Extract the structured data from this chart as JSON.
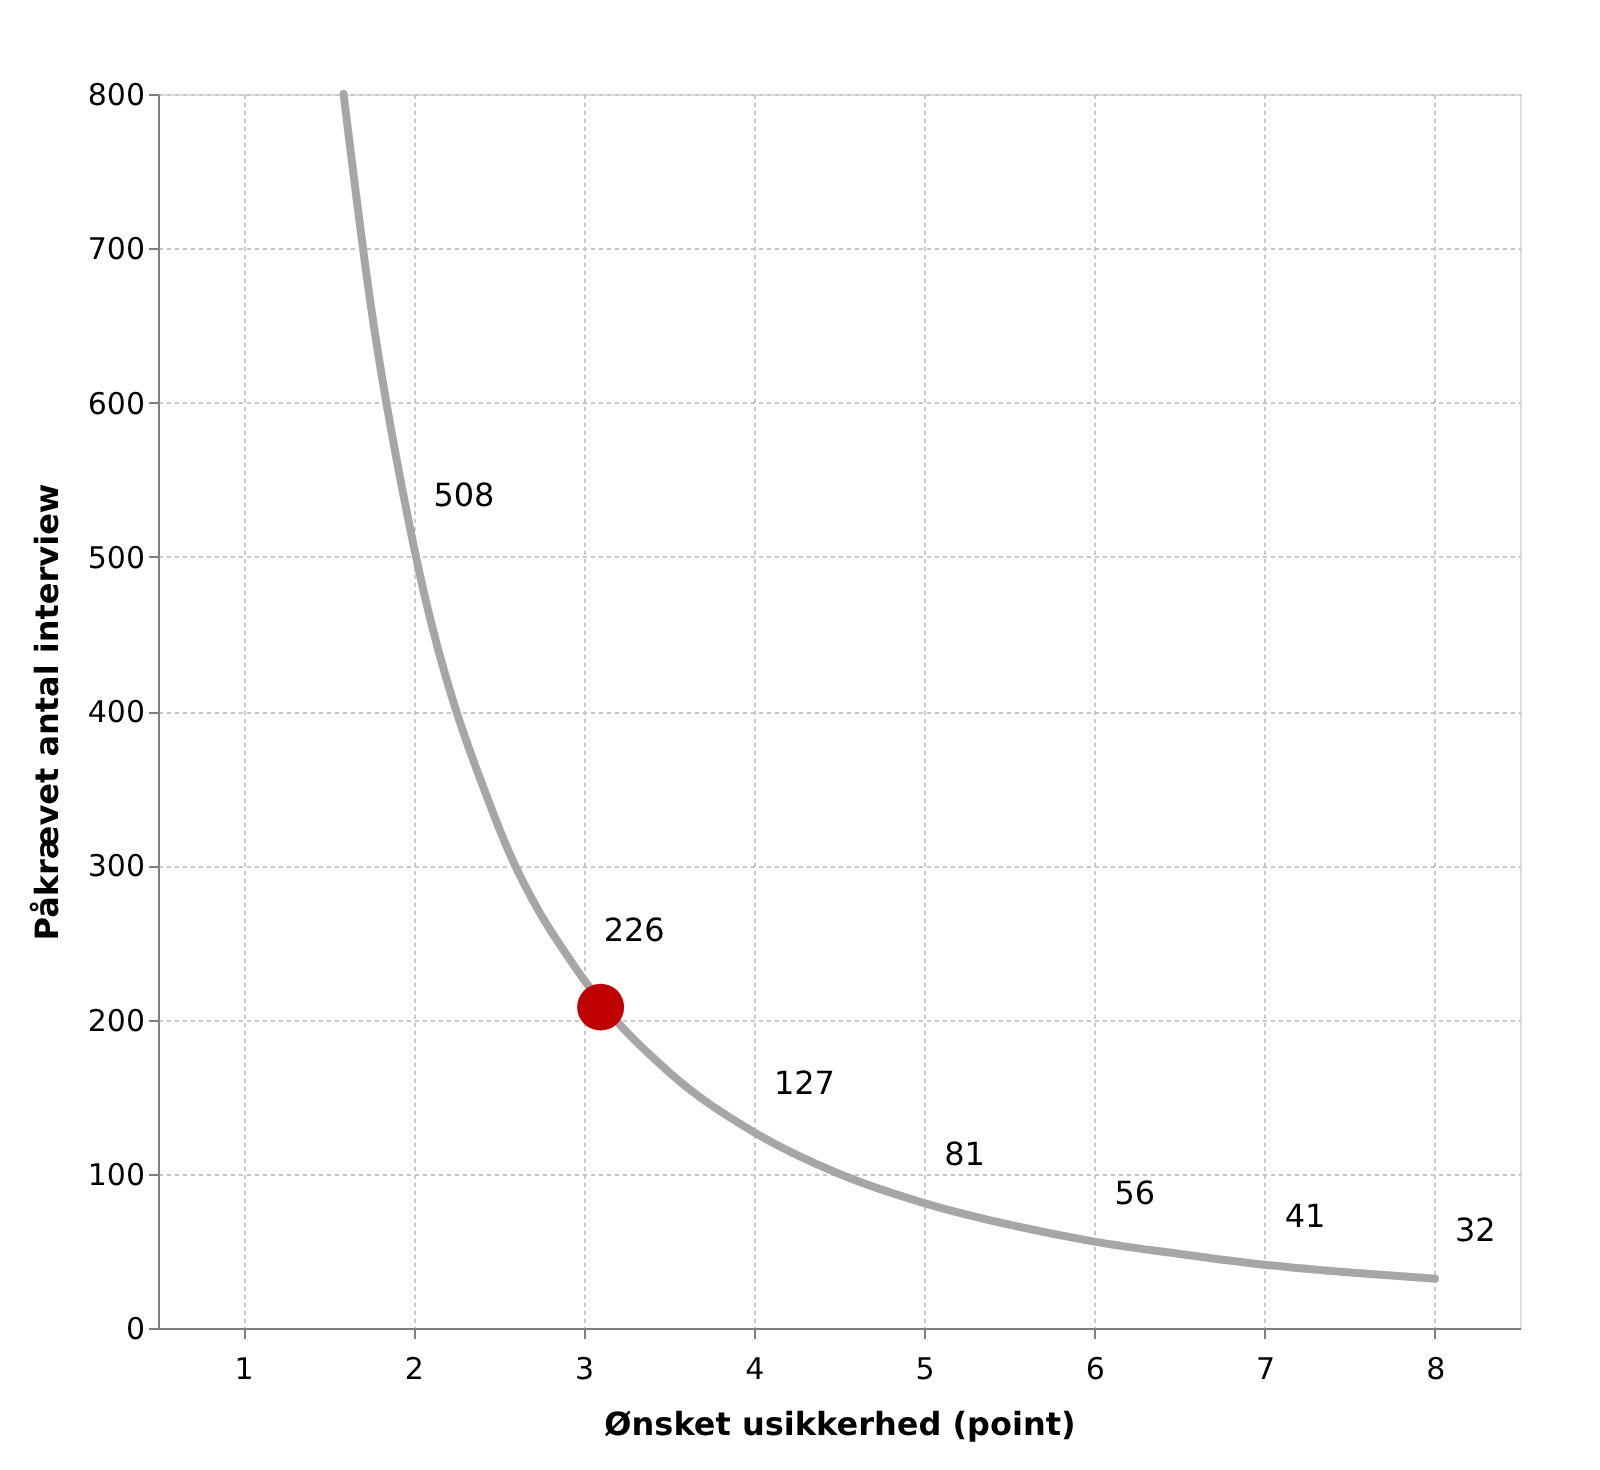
{
  "chart_data": {
    "type": "line",
    "xlabel": "Ønsket usikkerhed (point)",
    "ylabel": "Påkrævet antal interview",
    "xlim": [
      0.5,
      8.5
    ],
    "xticks": [
      1,
      2,
      3,
      4,
      5,
      6,
      7,
      8
    ],
    "ylim": [
      0,
      800
    ],
    "yticks": [
      0,
      100,
      200,
      300,
      400,
      500,
      600,
      700,
      800
    ],
    "grid": true,
    "legend": false,
    "series": [
      {
        "color": "#a6a6a6",
        "line_style": "solid",
        "x": [
          1.59,
          1.75,
          2,
          2.5,
          3,
          3.5,
          4,
          4.5,
          5,
          5.5,
          6,
          6.5,
          7,
          7.5,
          8
        ],
        "values": [
          800,
          663,
          508,
          325,
          226,
          166,
          127,
          100,
          81,
          67,
          56,
          48,
          41,
          36,
          32
        ],
        "value_labels": [
          null,
          null,
          "508",
          null,
          "226",
          null,
          "127",
          null,
          "81",
          null,
          "56",
          null,
          "41",
          null,
          "32"
        ]
      },
      {
        "type": "scatter",
        "color": "#c00000",
        "marker": "circle",
        "x": [
          3.1
        ],
        "values": [
          208
        ]
      }
    ]
  }
}
